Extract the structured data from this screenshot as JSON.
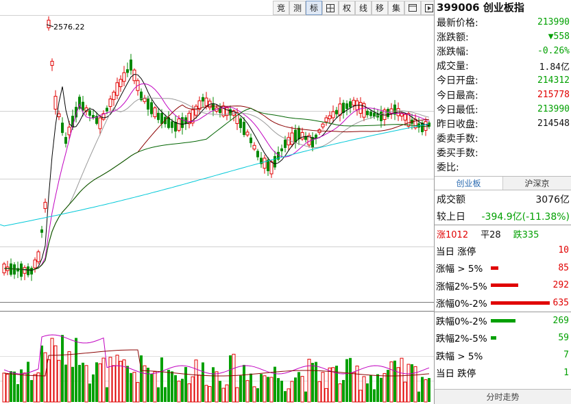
{
  "toolbar": {
    "buttons": [
      {
        "label": "竞",
        "icon": ""
      },
      {
        "label": "测",
        "icon": ""
      },
      {
        "label": "标",
        "icon": "",
        "active": true
      },
      {
        "label": "",
        "icon": "grid-icon"
      },
      {
        "label": "权",
        "icon": ""
      },
      {
        "label": "线",
        "icon": ""
      },
      {
        "label": "移",
        "icon": ""
      },
      {
        "label": "集",
        "icon": ""
      },
      {
        "label": "",
        "icon": "window-icon"
      },
      {
        "label": "",
        "icon": "play-icon"
      }
    ]
  },
  "chart": {
    "peak_label": "2576.22"
  },
  "quote": {
    "title": "399006 创业板指",
    "rows": [
      {
        "label": "最新价格:",
        "value": "213990",
        "color": "#00a000"
      },
      {
        "label": "涨跌额:",
        "value": "▼558",
        "color": "#00a000"
      },
      {
        "label": "涨跌幅:",
        "value": "-0.26%",
        "color": "#00a000"
      },
      {
        "label": "成交量:",
        "value": "1.84亿",
        "color": "#111111"
      },
      {
        "label": "今日开盘:",
        "value": "214312",
        "color": "#00a000"
      },
      {
        "label": "今日最高:",
        "value": "215778",
        "color": "#e00000"
      },
      {
        "label": "今日最低:",
        "value": "213990",
        "color": "#00a000"
      },
      {
        "label": "昨日收盘:",
        "value": "214548",
        "color": "#111111"
      },
      {
        "label": "委卖手数:",
        "value": "",
        "color": "#111111"
      },
      {
        "label": "委买手数:",
        "value": "",
        "color": "#111111"
      },
      {
        "label": "委比:",
        "value": "",
        "color": "#111111"
      }
    ]
  },
  "tabs": [
    "创业板",
    "沪深京"
  ],
  "turnover": {
    "label": "成交额",
    "value": "3076亿",
    "cmp_label": "较上日",
    "cmp_value": "-394.9亿(-11.38%)"
  },
  "summary": {
    "up": "涨1012",
    "flat": "平28",
    "down": "跌335"
  },
  "distribution": [
    {
      "label": "当日 涨停",
      "count": "10",
      "level": 0,
      "color": "#e00000"
    },
    {
      "label": "涨幅 > 5%",
      "count": "85",
      "level": 0.13,
      "color": "#e00000"
    },
    {
      "label": "涨幅2%-5%",
      "count": "292",
      "level": 0.46,
      "color": "#e00000"
    },
    {
      "label": "涨幅0%-2%",
      "count": "635",
      "level": 1.0,
      "color": "#e00000"
    },
    {
      "label": "跌幅0%-2%",
      "count": "269",
      "level": 0.42,
      "color": "#00a000"
    },
    {
      "label": "跌幅2%-5%",
      "count": "59",
      "level": 0.09,
      "color": "#00a000"
    },
    {
      "label": "跌幅 > 5%",
      "count": "7",
      "level": 0,
      "color": "#00a000"
    },
    {
      "label": "当日 跌停",
      "count": "1",
      "level": 0,
      "color": "#00a000"
    }
  ],
  "footer_tab": "分时走势",
  "colors": {
    "up": "#e00000",
    "down": "#00a000"
  }
}
